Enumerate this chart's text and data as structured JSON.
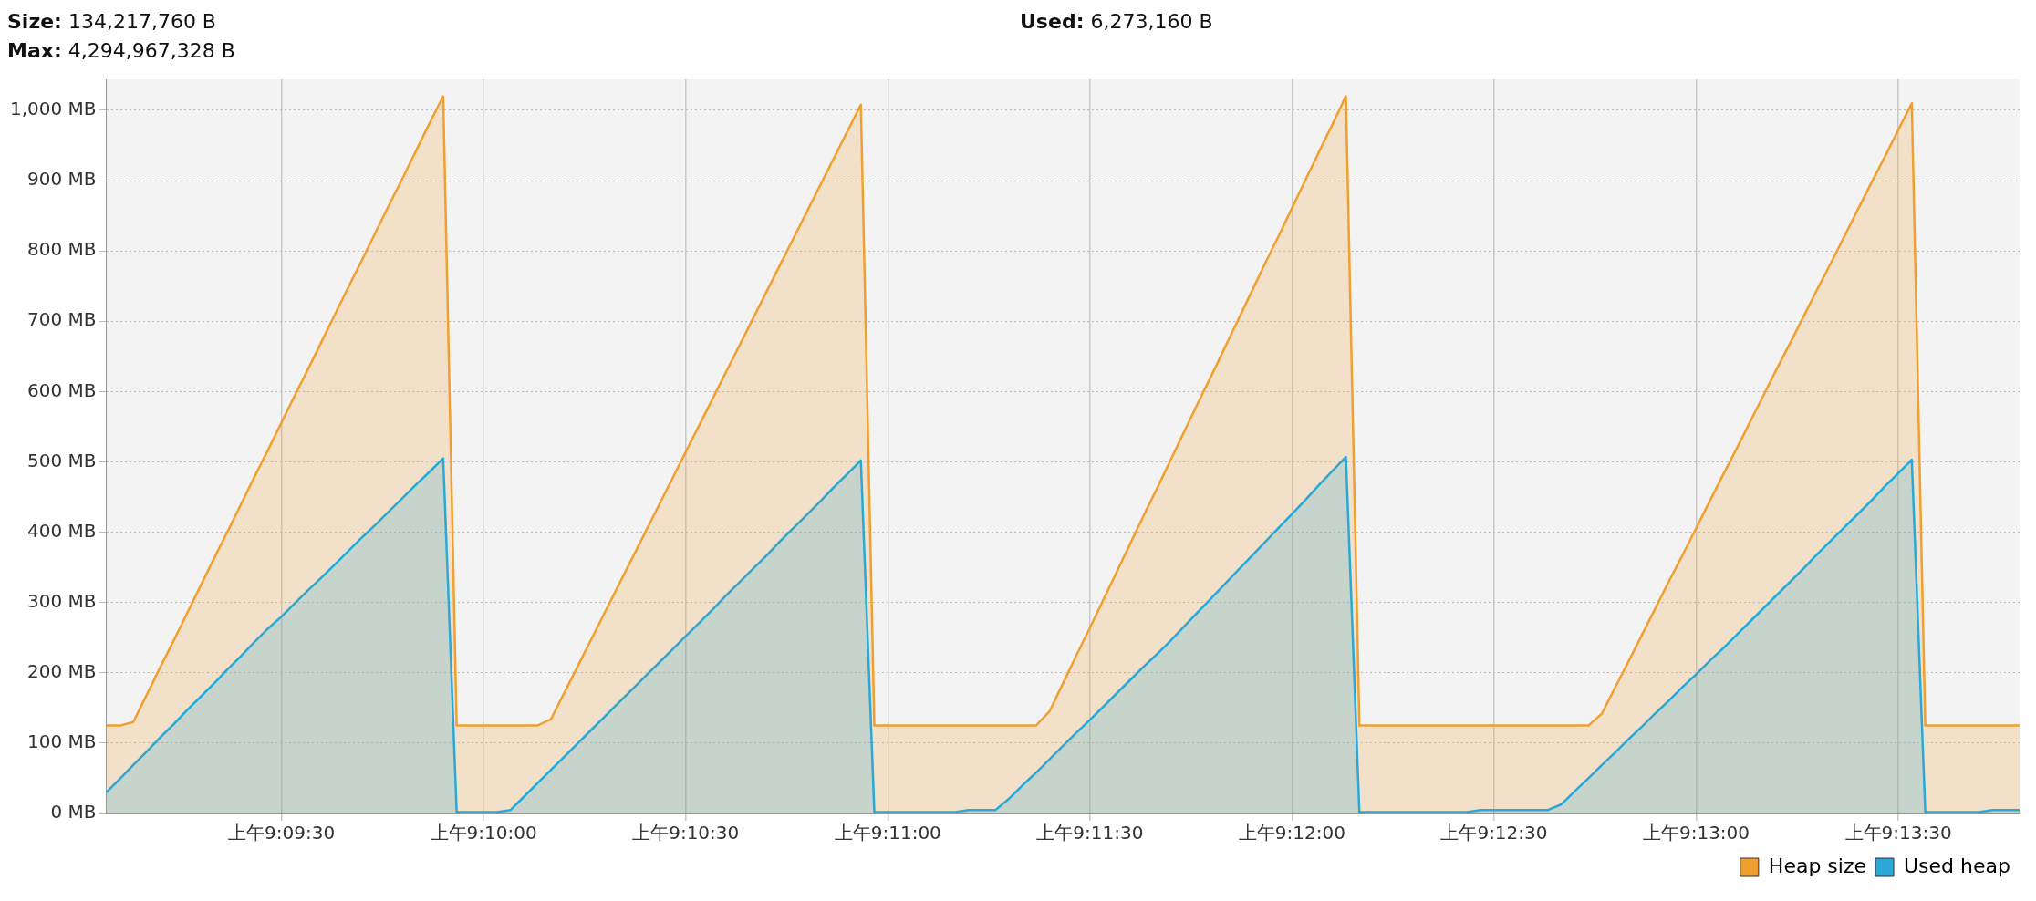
{
  "chart_data": {
    "type": "area",
    "annotations": [
      "Size: 134,217,760 B",
      "Used: 6,273,160 B",
      "Max: 4,294,967,328 B"
    ],
    "categories": [
      null,
      null,
      null,
      null,
      null,
      null,
      null,
      null,
      null,
      null,
      null,
      null,
      null,
      "上午9:09:30",
      null,
      null,
      null,
      null,
      null,
      null,
      null,
      null,
      null,
      null,
      null,
      null,
      null,
      null,
      "上午9:10:00",
      null,
      null,
      null,
      null,
      null,
      null,
      null,
      null,
      null,
      null,
      null,
      null,
      null,
      null,
      "上午9:10:30",
      null,
      null,
      null,
      null,
      null,
      null,
      null,
      null,
      null,
      null,
      null,
      null,
      null,
      null,
      "上午9:11:00",
      null,
      null,
      null,
      null,
      null,
      null,
      null,
      null,
      null,
      null,
      null,
      null,
      null,
      null,
      "上午9:11:30",
      null,
      null,
      null,
      null,
      null,
      null,
      null,
      null,
      null,
      null,
      null,
      null,
      null,
      null,
      "上午9:12:00",
      null,
      null,
      null,
      null,
      null,
      null,
      null,
      null,
      null,
      null,
      null,
      null,
      null,
      null,
      "上午9:12:30",
      null,
      null,
      null,
      null,
      null,
      null,
      null,
      null,
      null,
      null,
      null,
      null,
      null,
      null,
      "上午9:13:00",
      null,
      null,
      null,
      null,
      null,
      null,
      null,
      null,
      null,
      null,
      null,
      null,
      null,
      null,
      "上午9:13:30",
      null,
      null,
      null,
      null,
      null,
      null,
      null,
      null,
      null
    ],
    "series": [
      {
        "name": "Heap size",
        "color": "#f0a030",
        "values": [
          125,
          125,
          130,
          169,
          208,
          246,
          285,
          324,
          363,
          401,
          440,
          479,
          517,
          556,
          595,
          633,
          672,
          711,
          750,
          788,
          827,
          866,
          904,
          943,
          982,
          1020,
          125,
          125,
          125,
          125,
          125,
          125,
          125,
          134,
          172,
          210,
          248,
          286,
          324,
          362,
          400,
          438,
          476,
          514,
          552,
          590,
          628,
          666,
          704,
          742,
          780,
          818,
          856,
          894,
          932,
          970,
          1008,
          125,
          125,
          125,
          125,
          125,
          125,
          125,
          125,
          125,
          125,
          125,
          125,
          125,
          145,
          185,
          225,
          264,
          304,
          344,
          384,
          424,
          463,
          503,
          543,
          583,
          622,
          662,
          702,
          742,
          782,
          821,
          861,
          901,
          941,
          980,
          1020,
          125,
          125,
          125,
          125,
          125,
          125,
          125,
          125,
          125,
          125,
          125,
          125,
          125,
          125,
          125,
          125,
          125,
          125,
          142,
          180,
          217,
          255,
          293,
          331,
          368,
          406,
          444,
          482,
          519,
          557,
          595,
          633,
          670,
          708,
          746,
          783,
          821,
          859,
          897,
          934,
          972,
          1010,
          125,
          125,
          125,
          125,
          125,
          125,
          125,
          125
        ]
      },
      {
        "name": "Used heap",
        "color": "#2aa8d8",
        "values": [
          30,
          49,
          69,
          88,
          108,
          127,
          147,
          166,
          185,
          205,
          224,
          244,
          263,
          280,
          299,
          318,
          336,
          355,
          374,
          393,
          411,
          430,
          449,
          468,
          486,
          505,
          2,
          2,
          2,
          2,
          5,
          24,
          43,
          62,
          81,
          100,
          119,
          138,
          157,
          176,
          195,
          214,
          233,
          252,
          271,
          290,
          310,
          329,
          348,
          367,
          387,
          406,
          425,
          444,
          464,
          483,
          502,
          2,
          2,
          2,
          2,
          2,
          2,
          2,
          5,
          5,
          5,
          21,
          40,
          58,
          77,
          96,
          115,
          133,
          152,
          171,
          190,
          209,
          227,
          246,
          266,
          286,
          306,
          326,
          346,
          366,
          386,
          406,
          426,
          446,
          467,
          487,
          507,
          2,
          2,
          2,
          2,
          2,
          2,
          2,
          2,
          2,
          5,
          5,
          5,
          5,
          5,
          5,
          13,
          32,
          50,
          69,
          87,
          106,
          124,
          143,
          161,
          180,
          198,
          217,
          235,
          254,
          273,
          292,
          311,
          330,
          349,
          369,
          388,
          407,
          426,
          445,
          465,
          484,
          503,
          2,
          2,
          2,
          2,
          2,
          5,
          5,
          5
        ]
      }
    ],
    "ylim": [
      0,
      1044
    ],
    "yticks": [
      {
        "value": 0,
        "label": "0 MB"
      },
      {
        "value": 100,
        "label": "100 MB"
      },
      {
        "value": 200,
        "label": "200 MB"
      },
      {
        "value": 300,
        "label": "300 MB"
      },
      {
        "value": 400,
        "label": "400 MB"
      },
      {
        "value": 500,
        "label": "500 MB"
      },
      {
        "value": 600,
        "label": "600 MB"
      },
      {
        "value": 700,
        "label": "700 MB"
      },
      {
        "value": 800,
        "label": "800 MB"
      },
      {
        "value": 900,
        "label": "900 MB"
      },
      {
        "value": 1000,
        "label": "1,000 MB"
      }
    ],
    "grid": true,
    "legend": "bottom right",
    "marker": "none",
    "line_style": "solid"
  }
}
